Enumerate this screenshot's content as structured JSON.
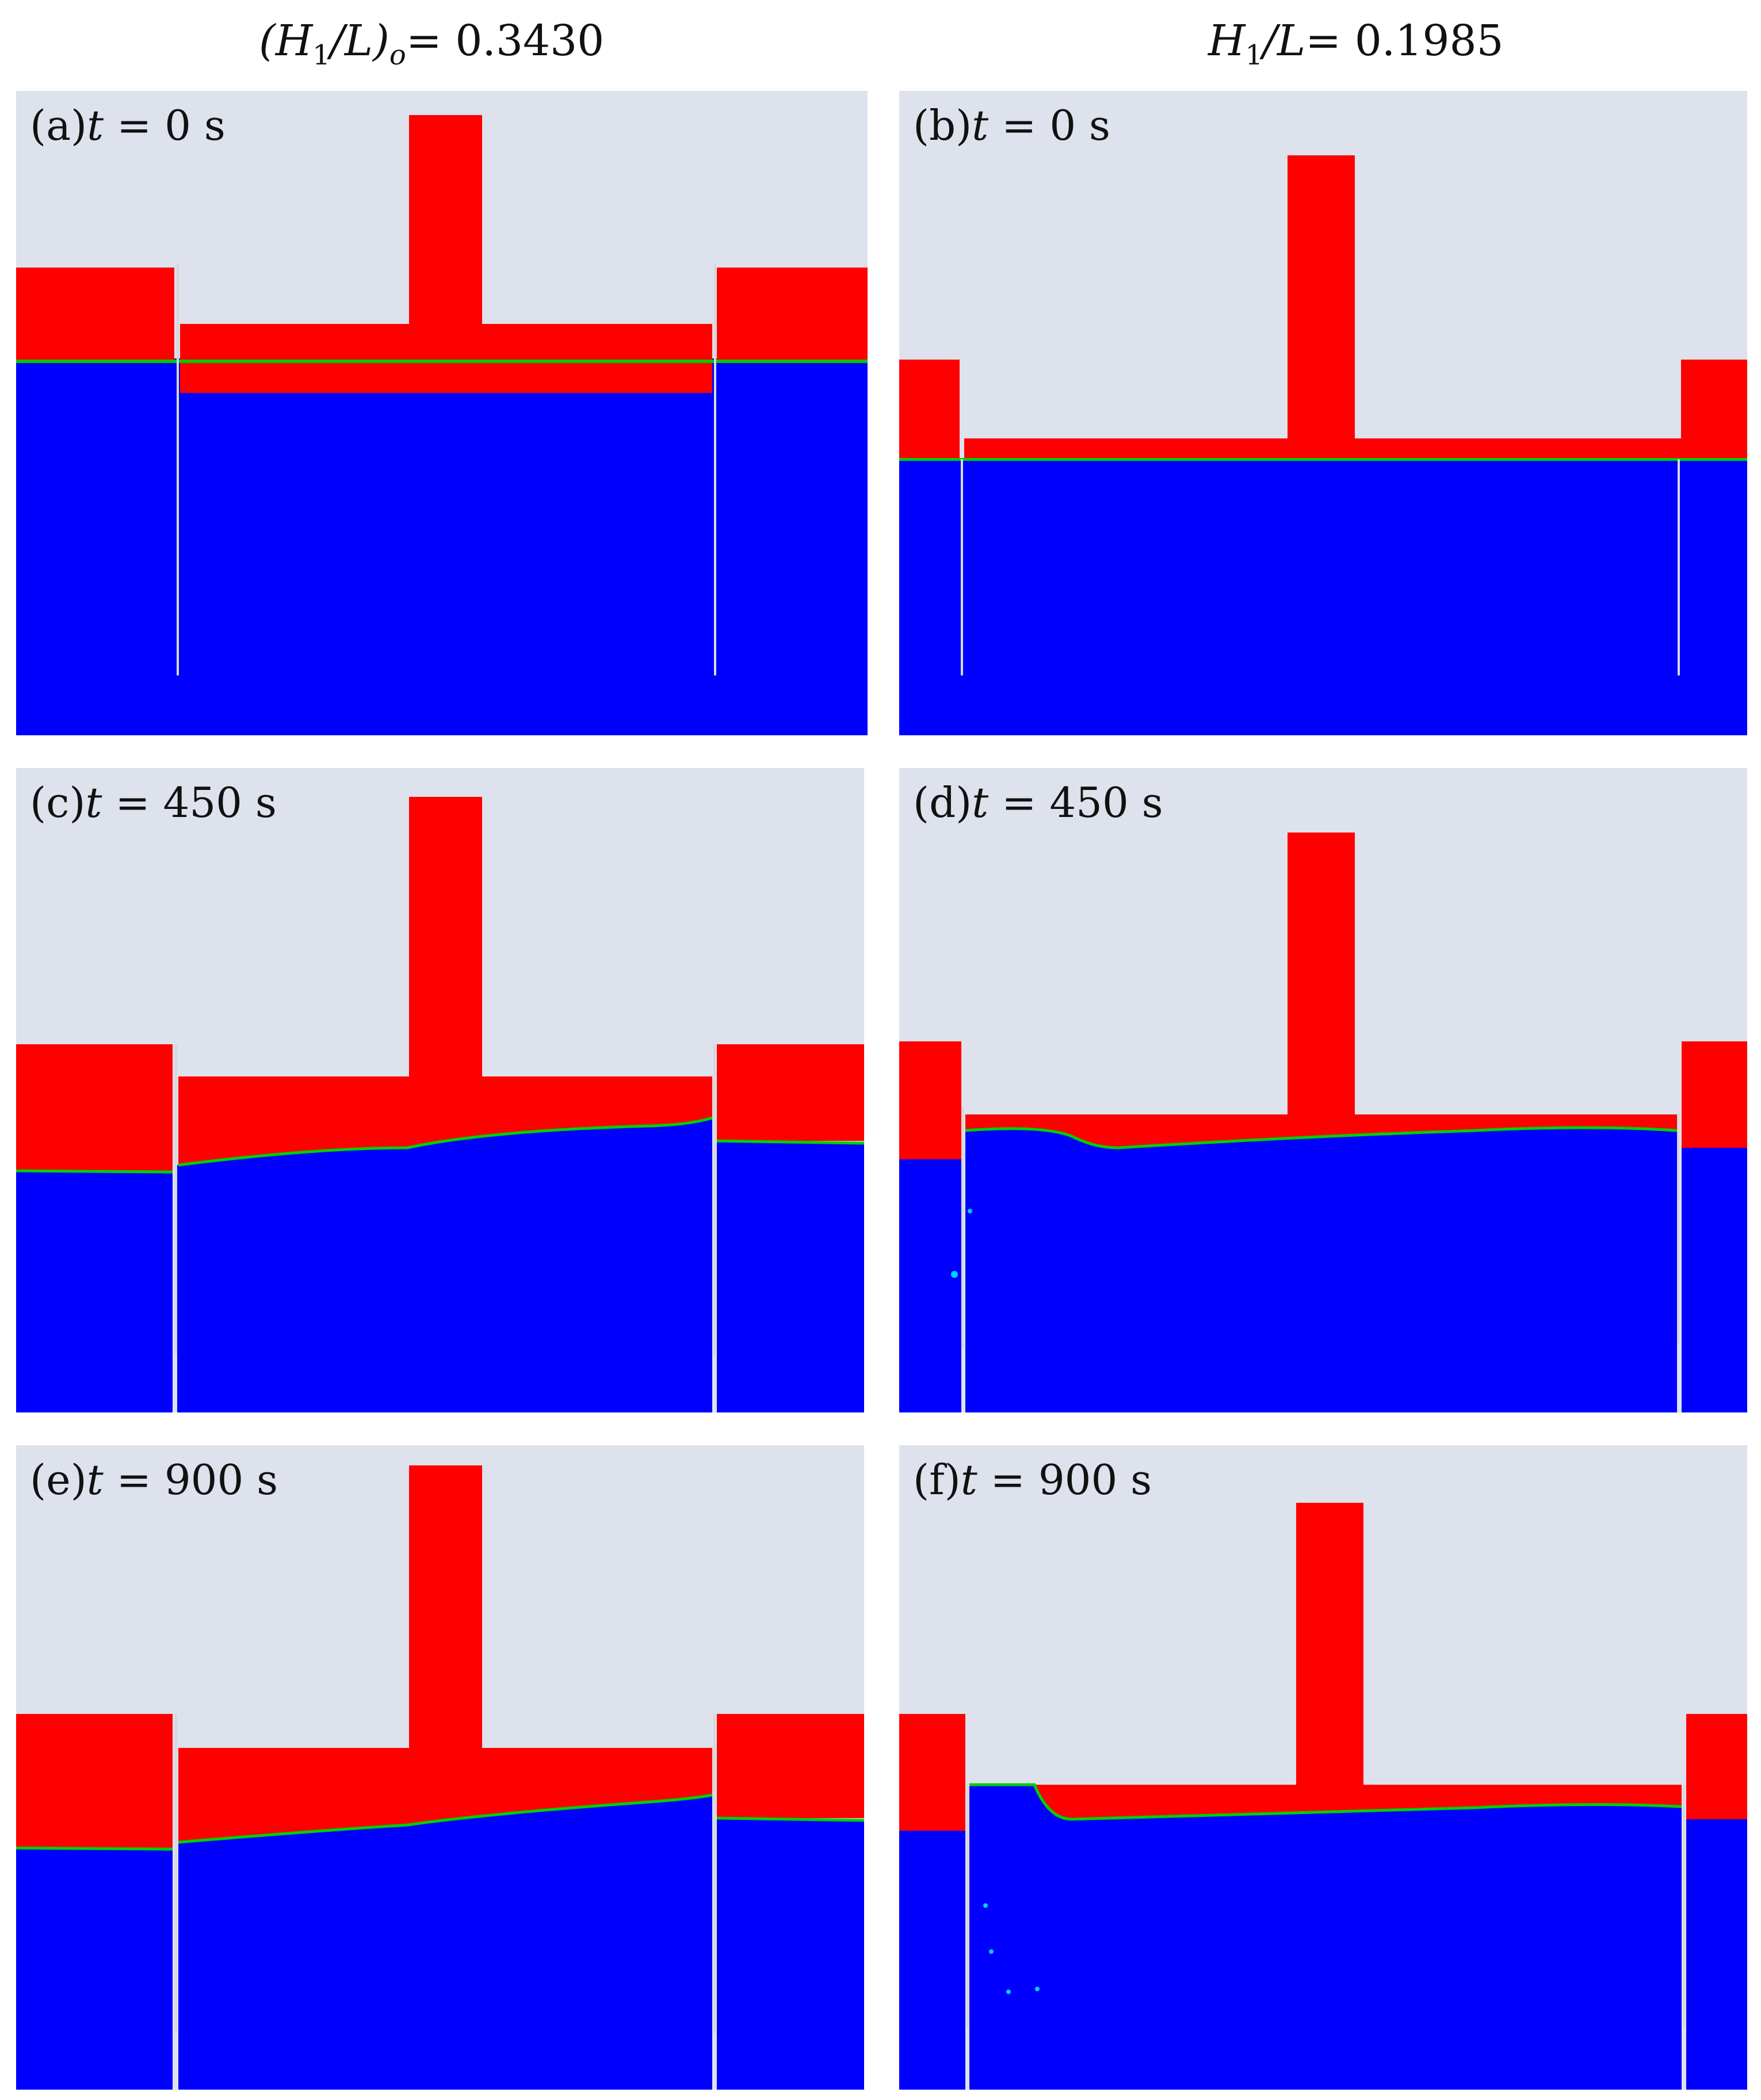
{
  "columns": [
    {
      "lhs": "(H",
      "sub": "1",
      "mid": "/L)",
      "sub2": "o",
      "eq": "= 0.3430"
    },
    {
      "lhs": "H",
      "sub": "1",
      "mid": "/L",
      "sub2": "",
      "eq": "= 0.1985"
    }
  ],
  "panels": [
    {
      "id": "a",
      "label": "(a)",
      "time": "t",
      "value": "= 0 s",
      "state": "initial",
      "column": "left"
    },
    {
      "id": "b",
      "label": "(b)",
      "time": "t",
      "value": "= 0 s",
      "state": "initial",
      "column": "right"
    },
    {
      "id": "c",
      "label": "(c)",
      "time": "t",
      "value": "= 450 s",
      "state": "mid",
      "column": "left"
    },
    {
      "id": "d",
      "label": "(d)",
      "time": "t",
      "value": "= 450 s",
      "state": "mid",
      "column": "right"
    },
    {
      "id": "e",
      "label": "(e)",
      "time": "t",
      "value": "= 900 s",
      "state": "late",
      "column": "left"
    },
    {
      "id": "f",
      "label": "(f)",
      "time": "t",
      "value": "= 900 s",
      "state": "late",
      "column": "right"
    }
  ],
  "colors": {
    "air": "#dde2ec",
    "oil": "#ff0000",
    "water": "#0000ff",
    "interface": "#00d000",
    "wall": "#d8d8d8"
  }
}
